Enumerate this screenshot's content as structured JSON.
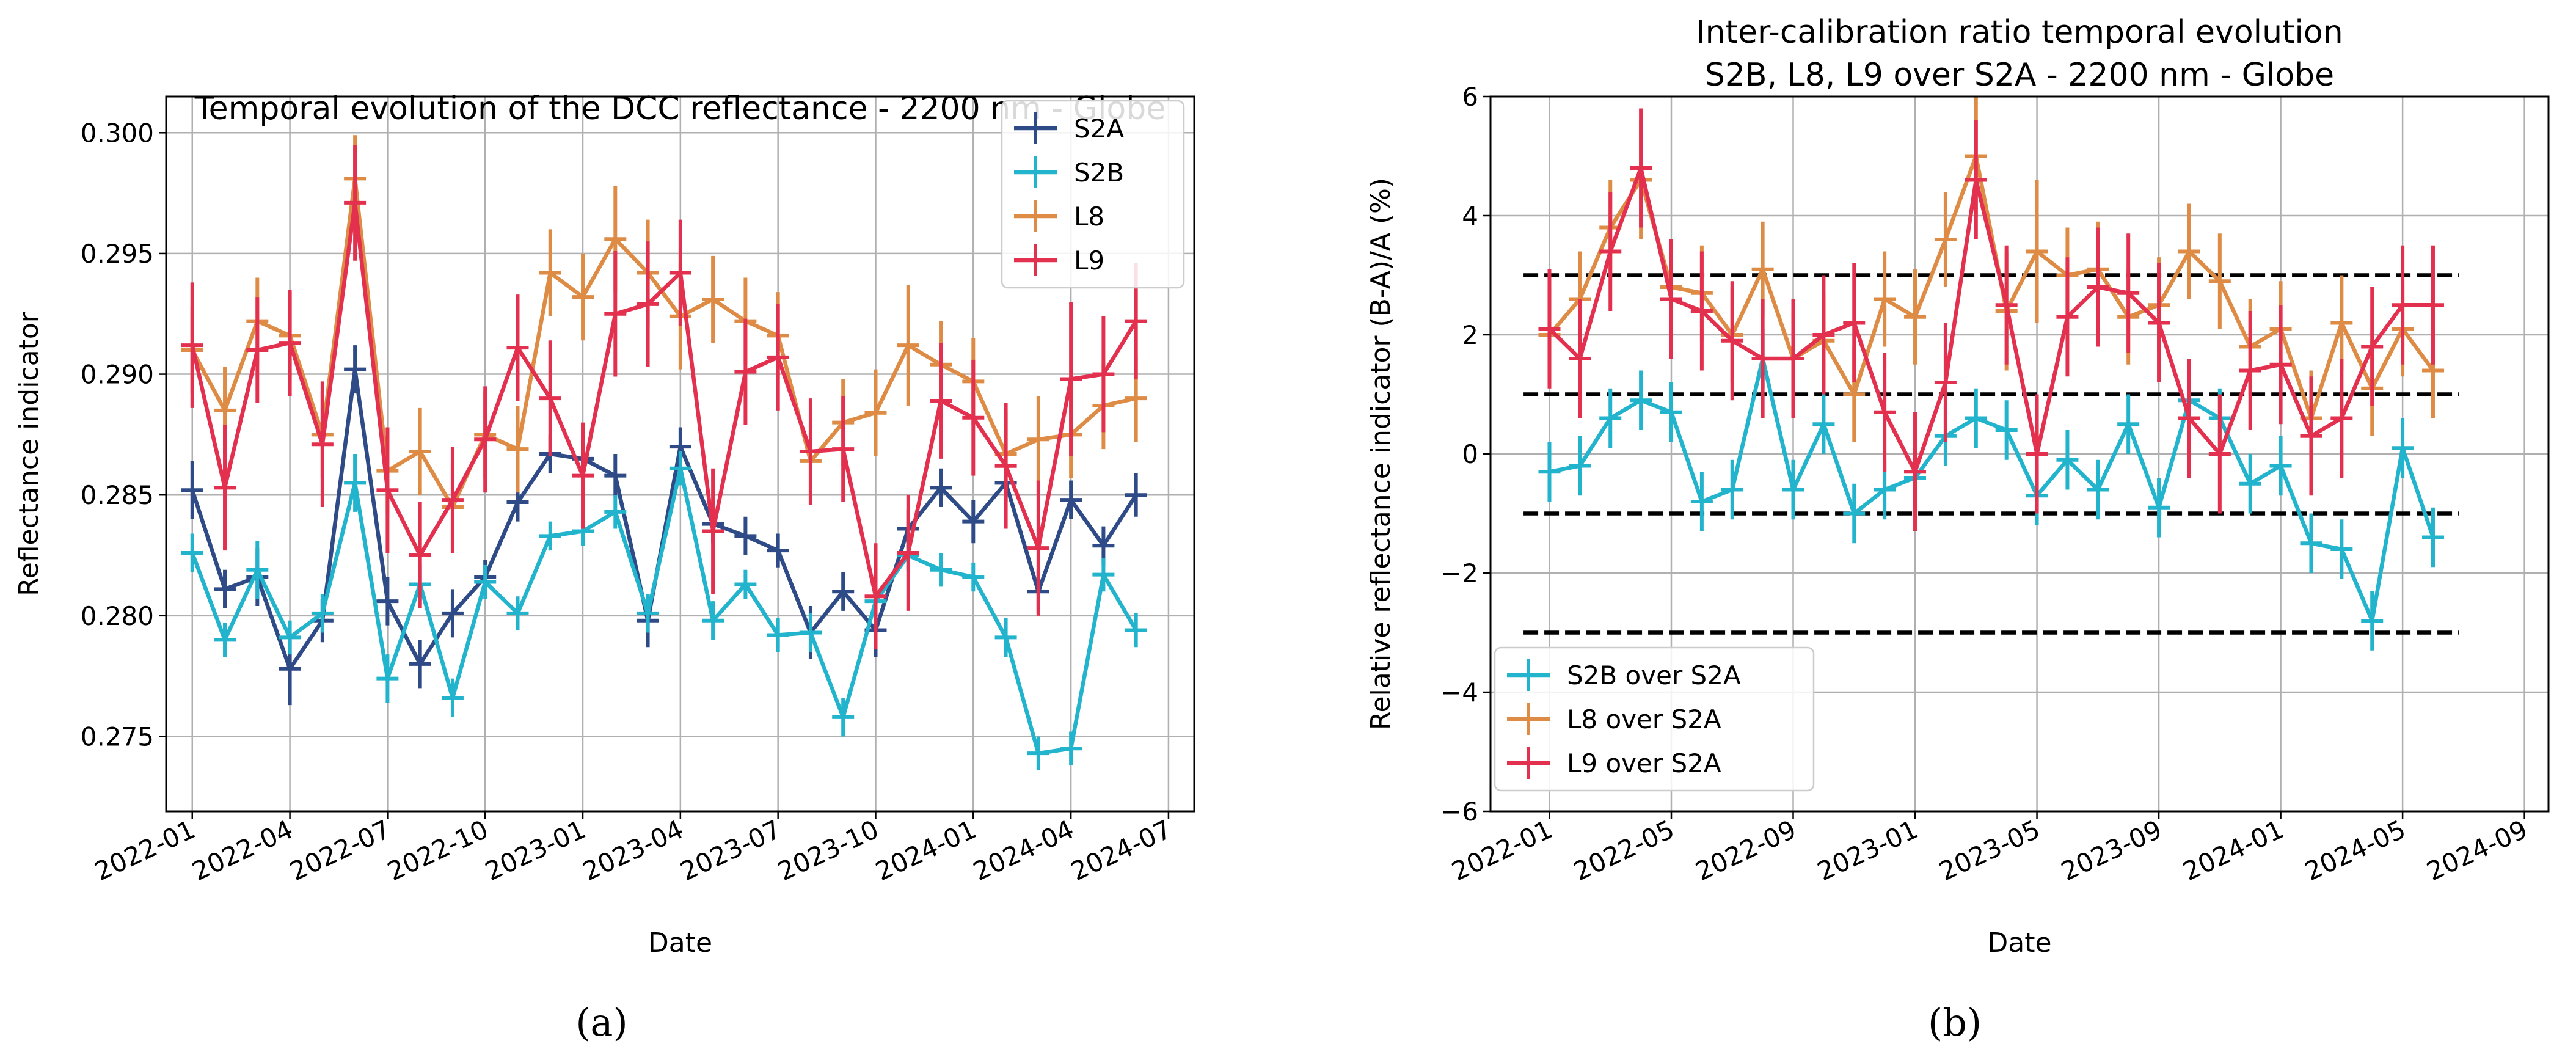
{
  "figure": {
    "caption_a": "(a)",
    "caption_b": "(b)"
  },
  "chart_data": [
    {
      "type": "line",
      "title": "Temporal evolution of the DCC reflectance - 2200 nm - Globe",
      "xlabel": "Date",
      "ylabel": "Reflectance indicator",
      "xlim": [
        "2021-12-07",
        "2024-07-25"
      ],
      "ylim": [
        0.2719,
        0.3015
      ],
      "xticks": [
        "2022-01",
        "2022-04",
        "2022-07",
        "2022-10",
        "2023-01",
        "2023-04",
        "2023-07",
        "2023-10",
        "2024-01",
        "2024-04",
        "2024-07"
      ],
      "yticks": [
        0.275,
        0.28,
        0.285,
        0.29,
        0.295,
        0.3
      ],
      "ytick_labels": [
        "0.275",
        "0.280",
        "0.285",
        "0.290",
        "0.295",
        "0.300"
      ],
      "grid": true,
      "legend_position": "top-right",
      "x": [
        "2022-01",
        "2022-02",
        "2022-03",
        "2022-04",
        "2022-05",
        "2022-06",
        "2022-07",
        "2022-08",
        "2022-09",
        "2022-10",
        "2022-11",
        "2022-12",
        "2023-01",
        "2023-02",
        "2023-03",
        "2023-04",
        "2023-05",
        "2023-06",
        "2023-07",
        "2023-08",
        "2023-09",
        "2023-10",
        "2023-11",
        "2023-12",
        "2024-01",
        "2024-02",
        "2024-03",
        "2024-04",
        "2024-05",
        "2024-06"
      ],
      "series": [
        {
          "name": "S2A",
          "color": "#2e4a87",
          "values": [
            0.2852,
            0.2811,
            0.2816,
            0.2778,
            0.2798,
            0.2902,
            0.2806,
            0.278,
            0.2801,
            0.2816,
            0.2847,
            0.2867,
            0.2865,
            0.2858,
            0.2798,
            0.287,
            0.2838,
            0.2833,
            0.2827,
            0.2793,
            0.281,
            0.2794,
            0.2836,
            0.2853,
            0.2839,
            0.2855,
            0.281,
            0.2848,
            0.2829,
            0.285
          ],
          "errors": [
            0.0012,
            0.0008,
            0.0012,
            0.0015,
            0.0009,
            0.001,
            0.001,
            0.001,
            0.001,
            0.0007,
            0.0008,
            0.0008,
            0.0008,
            0.0009,
            0.0011,
            0.0008,
            0.0008,
            0.0008,
            0.0007,
            0.0011,
            0.0008,
            0.0011,
            0.0008,
            0.0008,
            0.0009,
            0.0008,
            0.0009,
            0.0008,
            0.0008,
            0.0009
          ]
        },
        {
          "name": "S2B",
          "color": "#22b3cd",
          "values": [
            0.2826,
            0.279,
            0.2819,
            0.2791,
            0.2801,
            0.2855,
            0.2774,
            0.2813,
            0.2766,
            0.2814,
            0.2801,
            0.2833,
            0.2835,
            0.2843,
            0.2801,
            0.2861,
            0.2798,
            0.2813,
            0.2792,
            0.2793,
            0.2758,
            0.2806,
            0.2825,
            0.2819,
            0.2816,
            0.2791,
            0.2743,
            0.2745,
            0.2817,
            0.2794
          ],
          "errors": [
            0.0008,
            0.0007,
            0.0012,
            0.0007,
            0.0008,
            0.0012,
            0.001,
            0.0008,
            0.0008,
            0.0007,
            0.0007,
            0.0006,
            0.0006,
            0.0007,
            0.0008,
            0.0007,
            0.0008,
            0.0006,
            0.0007,
            0.0008,
            0.0008,
            0.0006,
            0.0007,
            0.0007,
            0.0006,
            0.0008,
            0.0007,
            0.0007,
            0.0007,
            0.0007
          ]
        },
        {
          "name": "L8",
          "color": "#de8c45",
          "values": [
            0.291,
            0.2885,
            0.2922,
            0.2916,
            0.2875,
            0.2981,
            0.286,
            0.2868,
            0.2845,
            0.2875,
            0.2869,
            0.2942,
            0.2932,
            0.2956,
            0.2942,
            0.2924,
            0.2931,
            0.2922,
            0.2916,
            0.2864,
            0.288,
            0.2884,
            0.2912,
            0.2904,
            0.2897,
            0.2867,
            0.2873,
            0.2875,
            0.2887,
            0.289
          ],
          "errors": [
            0.0018,
            0.0018,
            0.0018,
            0.0018,
            0.0018,
            0.0018,
            0.0018,
            0.0018,
            0.0018,
            0.0018,
            0.0018,
            0.0018,
            0.0018,
            0.0022,
            0.0022,
            0.0022,
            0.0018,
            0.0018,
            0.0018,
            0.0018,
            0.0018,
            0.0018,
            0.0025,
            0.0018,
            0.0018,
            0.0018,
            0.0018,
            0.0018,
            0.0018,
            0.0018
          ]
        },
        {
          "name": "L9",
          "color": "#e3304f",
          "values": [
            0.2912,
            0.2853,
            0.291,
            0.2913,
            0.2871,
            0.2971,
            0.2852,
            0.2825,
            0.2848,
            0.2873,
            0.2911,
            0.289,
            0.2858,
            0.2925,
            0.2929,
            0.2942,
            0.2835,
            0.2901,
            0.2907,
            0.2868,
            0.2869,
            0.2808,
            0.2826,
            0.2889,
            0.2882,
            0.2862,
            0.2828,
            0.2898,
            0.29,
            0.2922
          ],
          "errors": [
            0.0026,
            0.0026,
            0.0022,
            0.0022,
            0.0026,
            0.0024,
            0.0026,
            0.0022,
            0.0022,
            0.0022,
            0.0022,
            0.0024,
            0.0022,
            0.0026,
            0.0026,
            0.0022,
            0.0026,
            0.0022,
            0.0022,
            0.0022,
            0.0022,
            0.0022,
            0.0024,
            0.0024,
            0.0024,
            0.0026,
            0.0028,
            0.0032,
            0.0024,
            0.0024
          ]
        }
      ]
    },
    {
      "type": "line",
      "title": "Inter-calibration ratio temporal evolution",
      "subtitle": "S2B, L8, L9 over S2A - 2200 nm - Globe",
      "xlabel": "Date",
      "ylabel": "Relative reflectance indicator (B-A)/A (%)",
      "xlim": [
        "2021-11-03",
        "2024-09-25"
      ],
      "ylim": [
        -6,
        6
      ],
      "xticks": [
        "2022-01",
        "2022-05",
        "2022-09",
        "2023-01",
        "2023-05",
        "2023-09",
        "2024-01",
        "2024-05",
        "2024-09"
      ],
      "yticks": [
        -6,
        -4,
        -2,
        0,
        2,
        4,
        6
      ],
      "ytick_labels": [
        "−6",
        "−4",
        "−2",
        "0",
        "2",
        "4",
        "6"
      ],
      "grid": true,
      "legend_position": "bottom-left",
      "reference_lines": [
        3,
        1,
        -1,
        -3
      ],
      "reference_line_style": "black dashed",
      "x": [
        "2022-01",
        "2022-02",
        "2022-03",
        "2022-04",
        "2022-05",
        "2022-06",
        "2022-07",
        "2022-08",
        "2022-09",
        "2022-10",
        "2022-11",
        "2022-12",
        "2023-01",
        "2023-02",
        "2023-03",
        "2023-04",
        "2023-05",
        "2023-06",
        "2023-07",
        "2023-08",
        "2023-09",
        "2023-10",
        "2023-11",
        "2023-12",
        "2024-01",
        "2024-02",
        "2024-03",
        "2024-04",
        "2024-05",
        "2024-06"
      ],
      "series": [
        {
          "name": "S2B over S2A",
          "color": "#22b3cd",
          "values": [
            -0.3,
            -0.2,
            0.6,
            0.9,
            0.7,
            -0.8,
            -0.6,
            1.6,
            -0.6,
            0.5,
            -1.0,
            -0.6,
            -0.4,
            0.3,
            0.6,
            0.4,
            -0.7,
            -0.1,
            -0.6,
            0.5,
            -0.9,
            0.9,
            0.6,
            -0.5,
            -0.2,
            -1.5,
            -1.6,
            -2.8,
            0.1,
            -1.4
          ],
          "errors": [
            0.5,
            0.5,
            0.5,
            0.5,
            0.5,
            0.5,
            0.5,
            0.5,
            0.5,
            0.5,
            0.5,
            0.5,
            0.5,
            0.5,
            0.5,
            0.5,
            0.5,
            0.5,
            0.5,
            0.5,
            0.5,
            0.5,
            0.5,
            0.5,
            0.5,
            0.5,
            0.5,
            0.5,
            0.5,
            0.5
          ]
        },
        {
          "name": "L8 over S2A",
          "color": "#de8c45",
          "values": [
            2.0,
            2.6,
            3.8,
            4.6,
            2.8,
            2.7,
            2.0,
            3.1,
            1.6,
            1.9,
            1.0,
            2.6,
            2.3,
            3.6,
            5.0,
            2.4,
            3.4,
            3.0,
            3.1,
            2.3,
            2.5,
            3.4,
            2.9,
            1.8,
            2.1,
            0.6,
            2.2,
            1.1,
            2.1,
            1.4
          ],
          "errors": [
            0.8,
            0.8,
            0.8,
            1.0,
            0.8,
            0.8,
            0.8,
            0.8,
            0.8,
            0.8,
            0.8,
            0.8,
            0.8,
            0.8,
            1.0,
            1.0,
            1.2,
            0.8,
            0.8,
            0.8,
            0.8,
            0.8,
            0.8,
            0.8,
            0.8,
            0.8,
            0.8,
            0.8,
            0.8,
            0.8
          ]
        },
        {
          "name": "L9 over S2A",
          "color": "#e3304f",
          "values": [
            2.1,
            1.6,
            3.4,
            4.8,
            2.6,
            2.4,
            1.9,
            1.6,
            1.6,
            2.0,
            2.2,
            0.7,
            -0.3,
            1.2,
            4.6,
            2.5,
            0.0,
            2.3,
            2.8,
            2.7,
            2.2,
            0.6,
            0.0,
            1.4,
            1.5,
            0.3,
            0.6,
            1.8,
            2.5,
            2.5
          ],
          "errors": [
            1.0,
            1.0,
            1.0,
            1.0,
            1.0,
            1.0,
            1.0,
            1.0,
            1.0,
            1.0,
            1.0,
            1.0,
            1.0,
            1.0,
            1.0,
            1.0,
            1.0,
            1.0,
            1.0,
            1.0,
            1.0,
            1.0,
            1.0,
            1.0,
            1.0,
            1.0,
            1.0,
            1.0,
            1.0,
            1.0
          ]
        }
      ]
    }
  ]
}
